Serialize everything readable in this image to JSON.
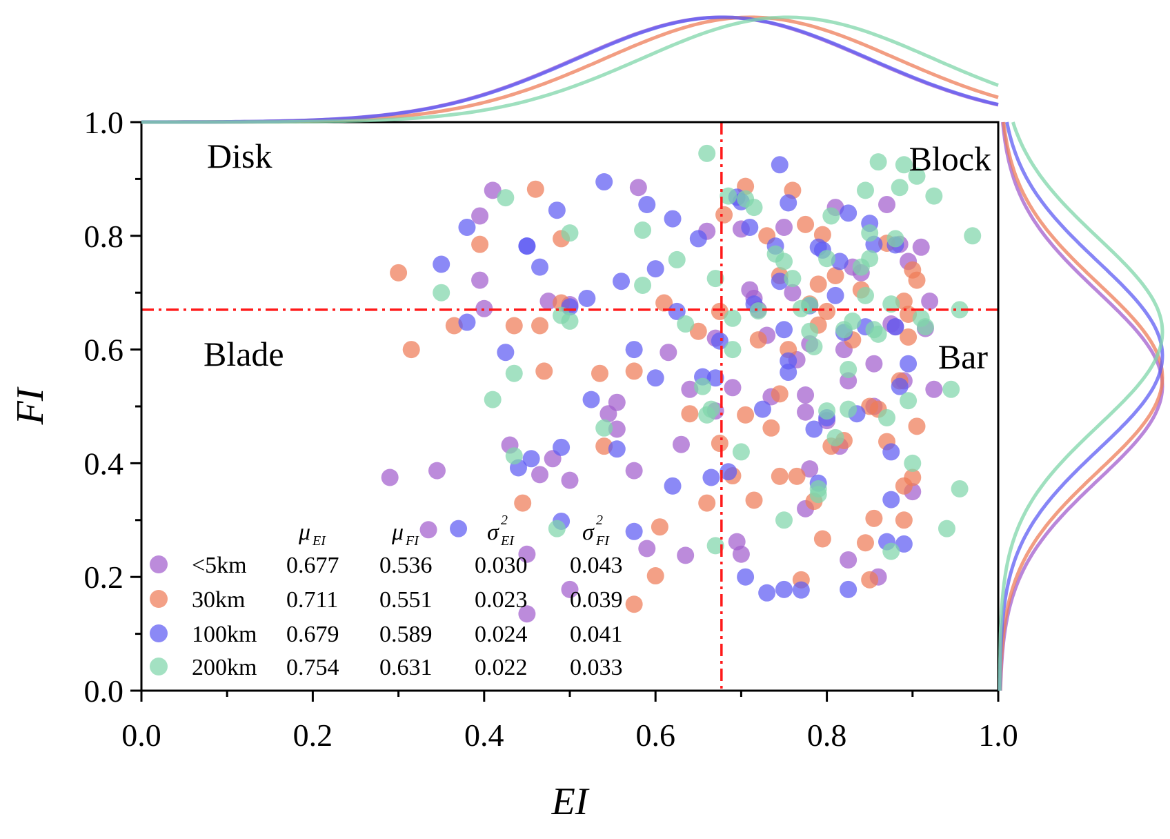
{
  "chart_data": {
    "type": "scatter",
    "xlabel": "EI",
    "ylabel": "FI",
    "xlim": [
      0,
      1
    ],
    "ylim": [
      0,
      1
    ],
    "x_ticks": [
      "0.0",
      "0.2",
      "0.4",
      "0.6",
      "0.8",
      "1.0"
    ],
    "y_ticks": [
      "0.0",
      "0.2",
      "0.4",
      "0.6",
      "0.8",
      "1.0"
    ],
    "x_tick_values": [
      0,
      0.2,
      0.4,
      0.6,
      0.8,
      1.0
    ],
    "y_tick_values": [
      0,
      0.2,
      0.4,
      0.6,
      0.8,
      1.0
    ],
    "threshold_lines": {
      "vertical_x": 0.677,
      "horizontal_y": 0.67,
      "color": "#ff1a1a",
      "style": "dash-dot"
    },
    "regions": [
      {
        "label": "Disk",
        "position": "top-left"
      },
      {
        "label": "Block",
        "position": "top-right"
      },
      {
        "label": "Blade",
        "position": "bottom-left"
      },
      {
        "label": "Bar",
        "position": "bottom-right"
      }
    ],
    "legend": {
      "position": "bottom-left",
      "headers": [
        {
          "symbol": "μ",
          "sub": "EI"
        },
        {
          "symbol": "μ",
          "sub": "FI"
        },
        {
          "symbol": "σ",
          "sup": "2",
          "sub": "EI"
        },
        {
          "symbol": "σ",
          "sup": "2",
          "sub": "FI"
        }
      ]
    },
    "series": [
      {
        "name": "<5km",
        "color": "#a25ecd",
        "stats": [
          "0.677",
          "0.536",
          "0.030",
          "0.043"
        ],
        "mu_ei": 0.677,
        "mu_fi": 0.536,
        "points": [
          [
            0.29,
            0.375
          ],
          [
            0.345,
            0.387
          ],
          [
            0.335,
            0.283
          ],
          [
            0.395,
            0.722
          ],
          [
            0.395,
            0.835
          ],
          [
            0.41,
            0.88
          ],
          [
            0.43,
            0.432
          ],
          [
            0.465,
            0.38
          ],
          [
            0.48,
            0.408
          ],
          [
            0.5,
            0.37
          ],
          [
            0.45,
            0.24
          ],
          [
            0.5,
            0.178
          ],
          [
            0.45,
            0.135
          ],
          [
            0.475,
            0.685
          ],
          [
            0.5,
            0.679
          ],
          [
            0.545,
            0.487
          ],
          [
            0.555,
            0.507
          ],
          [
            0.555,
            0.46
          ],
          [
            0.575,
            0.387
          ],
          [
            0.59,
            0.25
          ],
          [
            0.58,
            0.885
          ],
          [
            0.615,
            0.595
          ],
          [
            0.63,
            0.433
          ],
          [
            0.635,
            0.238
          ],
          [
            0.64,
            0.53
          ],
          [
            0.66,
            0.808
          ],
          [
            0.67,
            0.492
          ],
          [
            0.69,
            0.533
          ],
          [
            0.695,
            0.262
          ],
          [
            0.7,
            0.24
          ],
          [
            0.7,
            0.812
          ],
          [
            0.71,
            0.705
          ],
          [
            0.715,
            0.69
          ],
          [
            0.72,
            0.67
          ],
          [
            0.73,
            0.625
          ],
          [
            0.735,
            0.517
          ],
          [
            0.75,
            0.815
          ],
          [
            0.76,
            0.7
          ],
          [
            0.765,
            0.582
          ],
          [
            0.775,
            0.52
          ],
          [
            0.775,
            0.49
          ],
          [
            0.78,
            0.39
          ],
          [
            0.775,
            0.32
          ],
          [
            0.81,
            0.85
          ],
          [
            0.815,
            0.43
          ],
          [
            0.82,
            0.6
          ],
          [
            0.825,
            0.23
          ],
          [
            0.825,
            0.545
          ],
          [
            0.83,
            0.745
          ],
          [
            0.84,
            0.735
          ],
          [
            0.855,
            0.5
          ],
          [
            0.855,
            0.575
          ],
          [
            0.86,
            0.2
          ],
          [
            0.87,
            0.855
          ],
          [
            0.875,
            0.645
          ],
          [
            0.88,
            0.64
          ],
          [
            0.89,
            0.545
          ],
          [
            0.895,
            0.755
          ],
          [
            0.9,
            0.35
          ],
          [
            0.91,
            0.78
          ],
          [
            0.915,
            0.637
          ],
          [
            0.92,
            0.685
          ],
          [
            0.925,
            0.53
          ],
          [
            0.885,
            0.785
          ],
          [
            0.4,
            0.672
          ],
          [
            0.78,
            0.61
          ],
          [
            0.8,
            0.475
          ],
          [
            0.67,
            0.62
          ]
        ]
      },
      {
        "name": "30km",
        "color": "#ee7c58",
        "stats": [
          "0.711",
          "0.551",
          "0.023",
          "0.039"
        ],
        "mu_ei": 0.711,
        "mu_fi": 0.551,
        "points": [
          [
            0.3,
            0.735
          ],
          [
            0.315,
            0.6
          ],
          [
            0.365,
            0.642
          ],
          [
            0.395,
            0.785
          ],
          [
            0.435,
            0.642
          ],
          [
            0.445,
            0.33
          ],
          [
            0.46,
            0.882
          ],
          [
            0.465,
            0.642
          ],
          [
            0.47,
            0.562
          ],
          [
            0.49,
            0.795
          ],
          [
            0.49,
            0.682
          ],
          [
            0.535,
            0.558
          ],
          [
            0.54,
            0.43
          ],
          [
            0.575,
            0.562
          ],
          [
            0.575,
            0.152
          ],
          [
            0.6,
            0.202
          ],
          [
            0.605,
            0.288
          ],
          [
            0.61,
            0.682
          ],
          [
            0.64,
            0.487
          ],
          [
            0.65,
            0.632
          ],
          [
            0.66,
            0.33
          ],
          [
            0.675,
            0.435
          ],
          [
            0.675,
            0.667
          ],
          [
            0.68,
            0.837
          ],
          [
            0.69,
            0.378
          ],
          [
            0.705,
            0.485
          ],
          [
            0.705,
            0.887
          ],
          [
            0.715,
            0.335
          ],
          [
            0.72,
            0.617
          ],
          [
            0.73,
            0.8
          ],
          [
            0.735,
            0.462
          ],
          [
            0.745,
            0.73
          ],
          [
            0.745,
            0.522
          ],
          [
            0.745,
            0.377
          ],
          [
            0.755,
            0.6
          ],
          [
            0.76,
            0.88
          ],
          [
            0.765,
            0.377
          ],
          [
            0.77,
            0.195
          ],
          [
            0.775,
            0.82
          ],
          [
            0.78,
            0.68
          ],
          [
            0.785,
            0.333
          ],
          [
            0.79,
            0.643
          ],
          [
            0.79,
            0.715
          ],
          [
            0.795,
            0.267
          ],
          [
            0.795,
            0.802
          ],
          [
            0.8,
            0.667
          ],
          [
            0.805,
            0.43
          ],
          [
            0.81,
            0.73
          ],
          [
            0.82,
            0.44
          ],
          [
            0.83,
            0.617
          ],
          [
            0.84,
            0.705
          ],
          [
            0.845,
            0.26
          ],
          [
            0.85,
            0.5
          ],
          [
            0.85,
            0.195
          ],
          [
            0.855,
            0.303
          ],
          [
            0.86,
            0.495
          ],
          [
            0.87,
            0.787
          ],
          [
            0.87,
            0.438
          ],
          [
            0.885,
            0.545
          ],
          [
            0.89,
            0.36
          ],
          [
            0.89,
            0.685
          ],
          [
            0.89,
            0.3
          ],
          [
            0.895,
            0.662
          ],
          [
            0.9,
            0.375
          ],
          [
            0.9,
            0.74
          ],
          [
            0.905,
            0.722
          ],
          [
            0.905,
            0.465
          ],
          [
            0.895,
            0.622
          ]
        ]
      },
      {
        "name": "100km",
        "color": "#5e5cf3",
        "stats": [
          "0.679",
          "0.589",
          "0.024",
          "0.041"
        ],
        "mu_ei": 0.679,
        "mu_fi": 0.589,
        "points": [
          [
            0.35,
            0.75
          ],
          [
            0.37,
            0.285
          ],
          [
            0.38,
            0.648
          ],
          [
            0.38,
            0.815
          ],
          [
            0.425,
            0.595
          ],
          [
            0.44,
            0.392
          ],
          [
            0.45,
            0.782
          ],
          [
            0.45,
            0.782
          ],
          [
            0.455,
            0.408
          ],
          [
            0.465,
            0.745
          ],
          [
            0.485,
            0.845
          ],
          [
            0.49,
            0.298
          ],
          [
            0.49,
            0.428
          ],
          [
            0.5,
            0.675
          ],
          [
            0.52,
            0.69
          ],
          [
            0.525,
            0.512
          ],
          [
            0.54,
            0.895
          ],
          [
            0.555,
            0.425
          ],
          [
            0.56,
            0.72
          ],
          [
            0.575,
            0.28
          ],
          [
            0.575,
            0.6
          ],
          [
            0.59,
            0.855
          ],
          [
            0.6,
            0.742
          ],
          [
            0.6,
            0.55
          ],
          [
            0.62,
            0.83
          ],
          [
            0.62,
            0.36
          ],
          [
            0.625,
            0.667
          ],
          [
            0.65,
            0.795
          ],
          [
            0.655,
            0.552
          ],
          [
            0.665,
            0.375
          ],
          [
            0.67,
            0.55
          ],
          [
            0.675,
            0.615
          ],
          [
            0.685,
            0.385
          ],
          [
            0.695,
            0.868
          ],
          [
            0.7,
            0.86
          ],
          [
            0.705,
            0.2
          ],
          [
            0.71,
            0.815
          ],
          [
            0.715,
            0.68
          ],
          [
            0.725,
            0.495
          ],
          [
            0.73,
            0.172
          ],
          [
            0.74,
            0.782
          ],
          [
            0.745,
            0.72
          ],
          [
            0.745,
            0.925
          ],
          [
            0.75,
            0.635
          ],
          [
            0.75,
            0.178
          ],
          [
            0.755,
            0.58
          ],
          [
            0.755,
            0.56
          ],
          [
            0.755,
            0.858
          ],
          [
            0.77,
            0.177
          ],
          [
            0.78,
            0.677
          ],
          [
            0.785,
            0.46
          ],
          [
            0.79,
            0.365
          ],
          [
            0.79,
            0.78
          ],
          [
            0.795,
            0.775
          ],
          [
            0.8,
            0.48
          ],
          [
            0.81,
            0.695
          ],
          [
            0.815,
            0.755
          ],
          [
            0.825,
            0.84
          ],
          [
            0.825,
            0.178
          ],
          [
            0.835,
            0.487
          ],
          [
            0.845,
            0.64
          ],
          [
            0.85,
            0.822
          ],
          [
            0.855,
            0.785
          ],
          [
            0.87,
            0.262
          ],
          [
            0.875,
            0.336
          ],
          [
            0.875,
            0.42
          ],
          [
            0.88,
            0.784
          ],
          [
            0.88,
            0.64
          ],
          [
            0.885,
            0.535
          ],
          [
            0.89,
            0.258
          ],
          [
            0.895,
            0.575
          ],
          [
            0.82,
            0.63
          ]
        ]
      },
      {
        "name": "200km",
        "color": "#7fd6aa",
        "stats": [
          "0.754",
          "0.631",
          "0.022",
          "0.033"
        ],
        "mu_ei": 0.754,
        "mu_fi": 0.631,
        "points": [
          [
            0.35,
            0.7
          ],
          [
            0.41,
            0.512
          ],
          [
            0.425,
            0.867
          ],
          [
            0.435,
            0.558
          ],
          [
            0.435,
            0.413
          ],
          [
            0.485,
            0.285
          ],
          [
            0.49,
            0.66
          ],
          [
            0.5,
            0.805
          ],
          [
            0.5,
            0.65
          ],
          [
            0.54,
            0.462
          ],
          [
            0.585,
            0.81
          ],
          [
            0.585,
            0.713
          ],
          [
            0.625,
            0.758
          ],
          [
            0.635,
            0.645
          ],
          [
            0.655,
            0.535
          ],
          [
            0.66,
            0.945
          ],
          [
            0.66,
            0.485
          ],
          [
            0.665,
            0.495
          ],
          [
            0.67,
            0.725
          ],
          [
            0.67,
            0.255
          ],
          [
            0.685,
            0.87
          ],
          [
            0.69,
            0.655
          ],
          [
            0.69,
            0.6
          ],
          [
            0.7,
            0.42
          ],
          [
            0.705,
            0.865
          ],
          [
            0.715,
            0.85
          ],
          [
            0.72,
            0.668
          ],
          [
            0.74,
            0.768
          ],
          [
            0.75,
            0.755
          ],
          [
            0.75,
            0.3
          ],
          [
            0.76,
            0.725
          ],
          [
            0.77,
            0.672
          ],
          [
            0.78,
            0.632
          ],
          [
            0.78,
            0.678
          ],
          [
            0.785,
            0.605
          ],
          [
            0.79,
            0.345
          ],
          [
            0.79,
            0.355
          ],
          [
            0.8,
            0.492
          ],
          [
            0.8,
            0.76
          ],
          [
            0.805,
            0.835
          ],
          [
            0.81,
            0.445
          ],
          [
            0.82,
            0.635
          ],
          [
            0.825,
            0.565
          ],
          [
            0.825,
            0.495
          ],
          [
            0.83,
            0.65
          ],
          [
            0.84,
            0.745
          ],
          [
            0.845,
            0.88
          ],
          [
            0.845,
            0.695
          ],
          [
            0.85,
            0.805
          ],
          [
            0.85,
            0.76
          ],
          [
            0.855,
            0.635
          ],
          [
            0.86,
            0.627
          ],
          [
            0.87,
            0.48
          ],
          [
            0.875,
            0.245
          ],
          [
            0.875,
            0.68
          ],
          [
            0.885,
            0.885
          ],
          [
            0.89,
            0.925
          ],
          [
            0.895,
            0.51
          ],
          [
            0.9,
            0.4
          ],
          [
            0.905,
            0.905
          ],
          [
            0.91,
            0.655
          ],
          [
            0.915,
            0.64
          ],
          [
            0.925,
            0.87
          ],
          [
            0.94,
            0.285
          ],
          [
            0.945,
            0.53
          ],
          [
            0.955,
            0.355
          ],
          [
            0.955,
            0.67
          ],
          [
            0.97,
            0.8
          ],
          [
            0.86,
            0.93
          ],
          [
            0.88,
            0.795
          ]
        ]
      }
    ]
  }
}
